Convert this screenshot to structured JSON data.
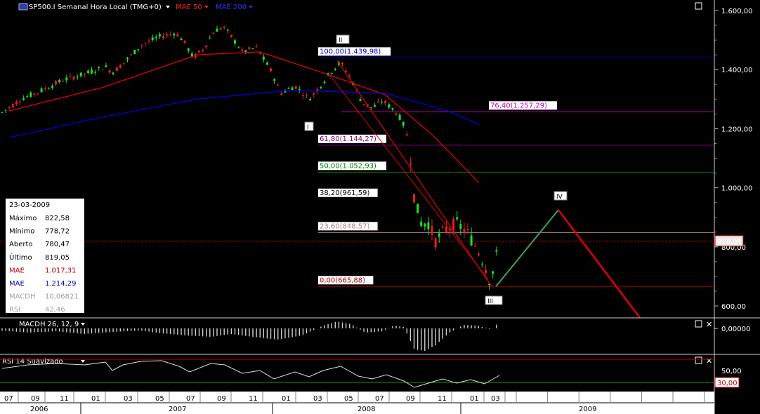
{
  "header": {
    "symbol": "SP500.I Semanal Hora Local (TMG+0)",
    "mae1_label": "MAE 50",
    "mae2_label": "MAE 200"
  },
  "price_axis": {
    "labels": [
      "1.600,00",
      "1.400,00",
      "1.200,00",
      "1.000,00",
      "800,00",
      "600,00"
    ],
    "values": [
      1600,
      1400,
      1200,
      1000,
      800,
      600
    ],
    "current_marker": "819,05"
  },
  "fib_levels": [
    {
      "label": "100,00(1.439,98)",
      "value": 1439.98,
      "color": "#0000c8"
    },
    {
      "label": "76,40(1.257,29)",
      "value": 1257.29,
      "color": "#c000c0"
    },
    {
      "label": "61,80(1.144,27)",
      "value": 1144.27,
      "color": "#800080"
    },
    {
      "label": "50,00(1.052,93)",
      "value": 1052.93,
      "color": "#008000"
    },
    {
      "label": "38,20(961,59)",
      "value": 961.59,
      "color": "#000000"
    },
    {
      "label": "23,60(848,57)",
      "value": 848.57,
      "color": "#b08080"
    },
    {
      "label": "0,00(665,88)",
      "value": 665.88,
      "color": "#c00000"
    }
  ],
  "waves": {
    "w1": "I",
    "w2": "II",
    "w3": "III",
    "w4": "IV"
  },
  "info_box": {
    "date": "23-03-2009",
    "rows": [
      {
        "k": "Máximo",
        "v": "822,58",
        "color": "#000000"
      },
      {
        "k": "Mínimo",
        "v": "778,72",
        "color": "#000000"
      },
      {
        "k": "Aberto",
        "v": "780,47",
        "color": "#000000"
      },
      {
        "k": "Último",
        "v": "819,05",
        "color": "#000000"
      },
      {
        "k": "MAE",
        "v": "1.017,31",
        "color": "#c00000"
      },
      {
        "k": "MAE",
        "v": "1.214,29",
        "color": "#0000c0"
      },
      {
        "k": "MACDH",
        "v": "10,06821",
        "color": "#a0a0a0"
      },
      {
        "k": "RSI",
        "v": "42,46",
        "color": "#a0a0a0"
      }
    ]
  },
  "macd_panel": {
    "title": "MACDH 26, 12, 9",
    "axis_label": "0,00000"
  },
  "rsi_panel": {
    "title": "RSI 14 Suavizado",
    "axis_label": "50,00",
    "level_label": "30,00"
  },
  "time_axis": {
    "months": [
      "07",
      "09",
      "11",
      "01",
      "03",
      "05",
      "07",
      "09",
      "11",
      "01",
      "03",
      "05",
      "07",
      "09",
      "11",
      "01",
      "03"
    ],
    "years": [
      "2006",
      "2007",
      "2008",
      "2009"
    ]
  },
  "chart_data": {
    "type": "candlestick",
    "title": "SP500.I Semanal Hora Local (TMG+0)",
    "timeframe": "weekly",
    "x_range": [
      "2006-07",
      "2009-12"
    ],
    "ylim": [
      560,
      1650
    ],
    "series": [
      {
        "name": "MAE 50",
        "color": "#e00000",
        "approx_values": [
          {
            "x": "2006-07",
            "y": 1260
          },
          {
            "x": "2007-01",
            "y": 1340
          },
          {
            "x": "2007-07",
            "y": 1450
          },
          {
            "x": "2007-11",
            "y": 1460
          },
          {
            "x": "2008-03",
            "y": 1390
          },
          {
            "x": "2008-07",
            "y": 1315
          },
          {
            "x": "2008-10",
            "y": 1180
          },
          {
            "x": "2009-01",
            "y": 1017
          }
        ]
      },
      {
        "name": "MAE 200",
        "color": "#0000e0",
        "approx_values": [
          {
            "x": "2006-07",
            "y": 1170
          },
          {
            "x": "2007-01",
            "y": 1240
          },
          {
            "x": "2007-07",
            "y": 1300
          },
          {
            "x": "2008-01",
            "y": 1330
          },
          {
            "x": "2008-07",
            "y": 1320
          },
          {
            "x": "2008-11",
            "y": 1260
          },
          {
            "x": "2009-01",
            "y": 1214
          }
        ]
      }
    ],
    "projection": [
      {
        "x": "2009-03",
        "y": 665.88
      },
      {
        "x": "2009-07",
        "y": 925
      },
      {
        "x": "2009-12",
        "y": 560
      }
    ],
    "last_close": 819.05,
    "rsi_levels": [
      70,
      30
    ]
  }
}
